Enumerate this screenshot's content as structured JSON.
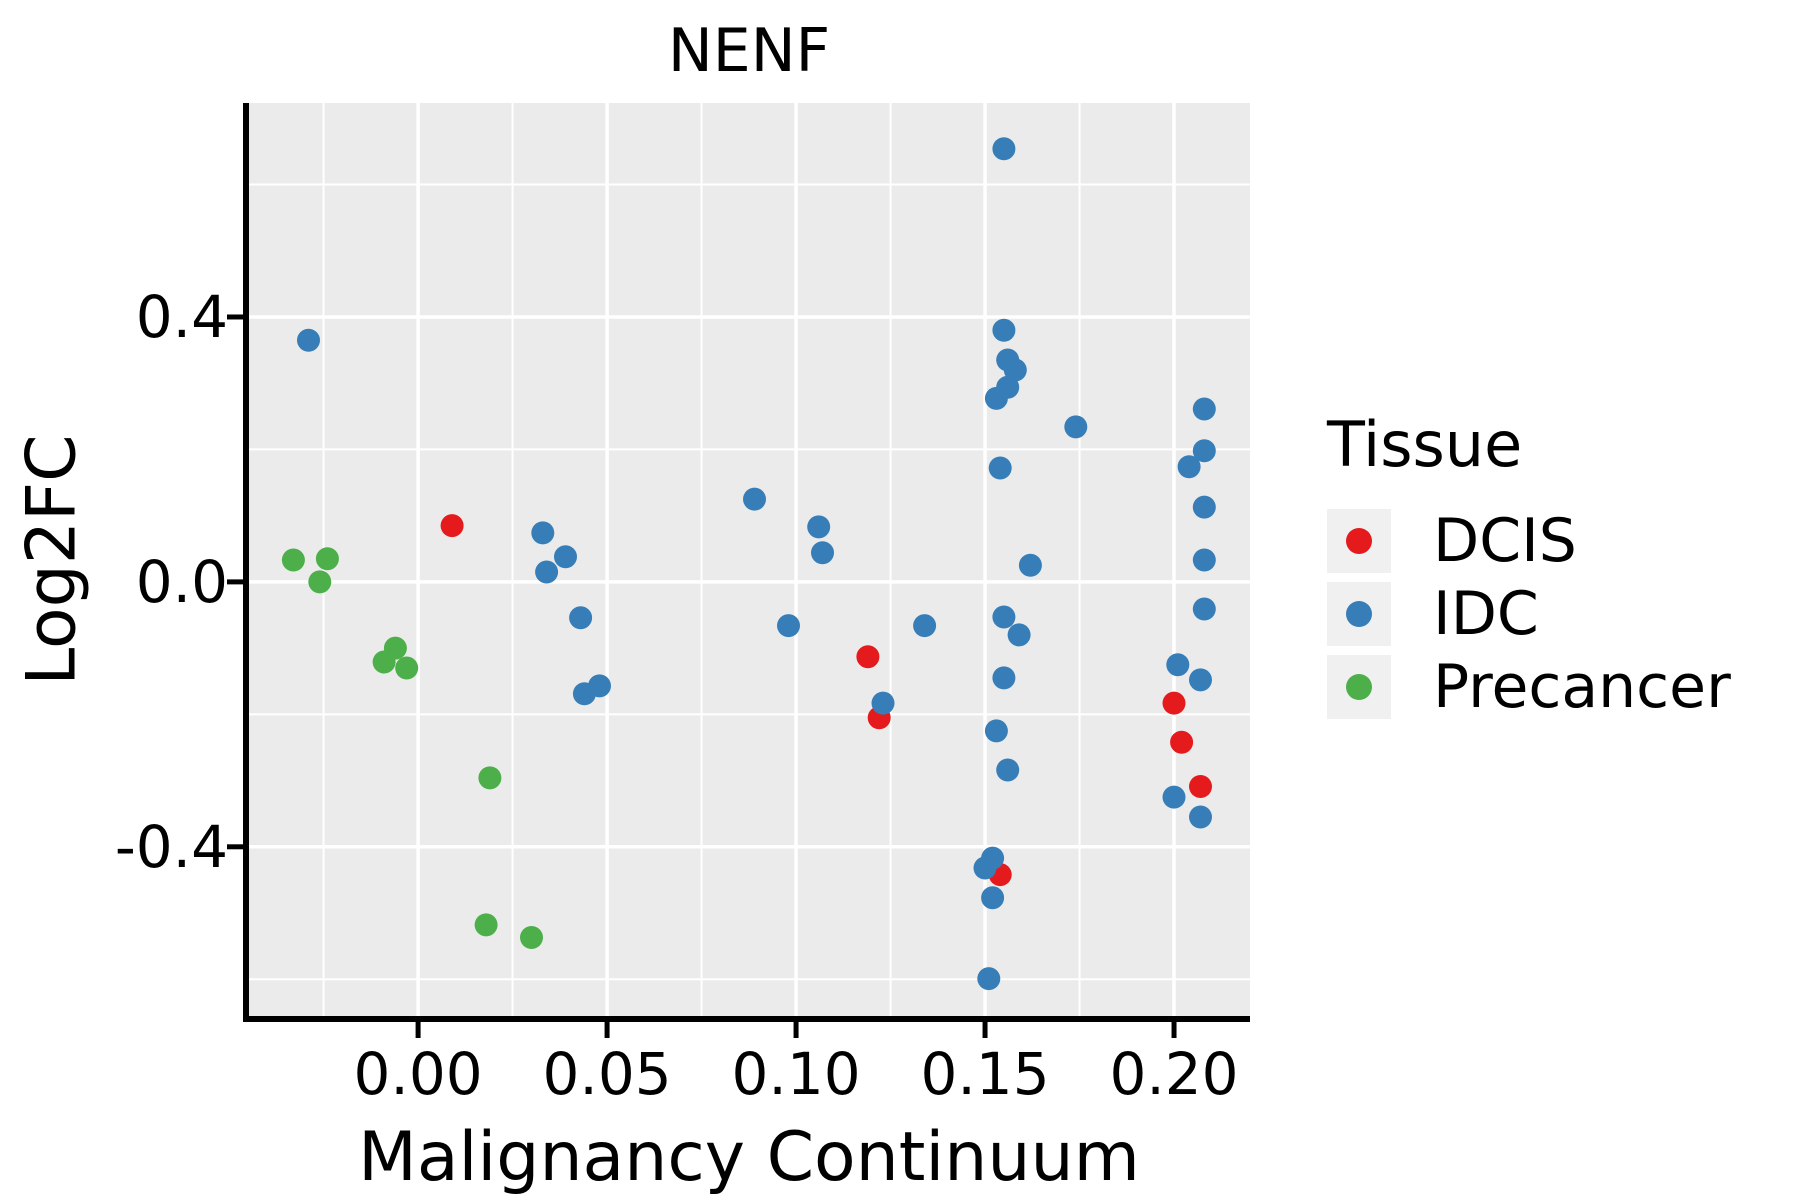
{
  "title": "NENF",
  "x_axis": {
    "label": "Malignancy Continuum",
    "tick_labels": [
      "0.00",
      "0.05",
      "0.10",
      "0.15",
      "0.20"
    ],
    "tick_values": [
      0.0,
      0.05,
      0.1,
      0.15,
      0.2
    ],
    "minor_tick_values": [
      -0.025,
      0.025,
      0.075,
      0.125,
      0.175
    ]
  },
  "y_axis": {
    "label": "Log2FC",
    "tick_labels": [
      "0.4",
      "0.0",
      "-0.4"
    ],
    "tick_values": [
      0.4,
      0.0,
      -0.4
    ],
    "minor_tick_values": [
      0.6,
      0.2,
      -0.2,
      -0.6
    ]
  },
  "legend": {
    "title": "Tissue",
    "items": [
      {
        "label": "DCIS",
        "color": "#E41A1C"
      },
      {
        "label": "IDC",
        "color": "#377EB8"
      },
      {
        "label": "Precancer",
        "color": "#4DAF4A"
      }
    ]
  },
  "colors": {
    "panel_background": "#EBEBEB",
    "gridline": "#FFFFFF",
    "axis_line": "#000000",
    "legend_key_background": "#F0F0F0",
    "text": "#000000"
  },
  "chart_data": {
    "type": "scatter",
    "title": "NENF",
    "xlabel": "Malignancy Continuum",
    "ylabel": "Log2FC",
    "xlim": [
      -0.045,
      0.2201
    ],
    "ylim": [
      -0.657,
      0.7231
    ],
    "grid": true,
    "legend_position": "right",
    "series": [
      {
        "name": "DCIS",
        "color": "#E41A1C",
        "points": [
          [
            0.009,
            0.085
          ],
          [
            0.119,
            -0.113
          ],
          [
            0.122,
            -0.205
          ],
          [
            0.154,
            -0.442
          ],
          [
            0.2,
            -0.183
          ],
          [
            0.202,
            -0.242
          ],
          [
            0.207,
            -0.309
          ]
        ]
      },
      {
        "name": "IDC",
        "color": "#377EB8",
        "points": [
          [
            -0.029,
            0.365
          ],
          [
            0.033,
            0.074
          ],
          [
            0.039,
            0.038
          ],
          [
            0.034,
            0.015
          ],
          [
            0.043,
            -0.054
          ],
          [
            0.048,
            -0.157
          ],
          [
            0.044,
            -0.169
          ],
          [
            0.089,
            0.125
          ],
          [
            0.106,
            0.083
          ],
          [
            0.107,
            0.044
          ],
          [
            0.098,
            -0.066
          ],
          [
            0.134,
            -0.066
          ],
          [
            0.123,
            -0.183
          ],
          [
            0.155,
            0.654
          ],
          [
            0.155,
            0.38
          ],
          [
            0.156,
            0.335
          ],
          [
            0.158,
            0.32
          ],
          [
            0.156,
            0.294
          ],
          [
            0.153,
            0.277
          ],
          [
            0.174,
            0.234
          ],
          [
            0.154,
            0.172
          ],
          [
            0.162,
            0.025
          ],
          [
            0.155,
            -0.053
          ],
          [
            0.159,
            -0.08
          ],
          [
            0.155,
            -0.145
          ],
          [
            0.153,
            -0.225
          ],
          [
            0.156,
            -0.284
          ],
          [
            0.152,
            -0.417
          ],
          [
            0.15,
            -0.432
          ],
          [
            0.152,
            -0.477
          ],
          [
            0.151,
            -0.599
          ],
          [
            0.201,
            -0.125
          ],
          [
            0.207,
            -0.148
          ],
          [
            0.2,
            -0.325
          ],
          [
            0.207,
            -0.355
          ],
          [
            0.208,
            0.261
          ],
          [
            0.208,
            0.198
          ],
          [
            0.204,
            0.174
          ],
          [
            0.208,
            0.113
          ],
          [
            0.208,
            0.033
          ],
          [
            0.208,
            -0.041
          ]
        ]
      },
      {
        "name": "Precancer",
        "color": "#4DAF4A",
        "points": [
          [
            -0.033,
            0.033
          ],
          [
            -0.024,
            0.035
          ],
          [
            -0.026,
            0.0
          ],
          [
            -0.006,
            -0.1
          ],
          [
            -0.009,
            -0.121
          ],
          [
            -0.003,
            -0.13
          ],
          [
            0.019,
            -0.296
          ],
          [
            0.018,
            -0.518
          ],
          [
            0.03,
            -0.537
          ]
        ]
      }
    ]
  }
}
